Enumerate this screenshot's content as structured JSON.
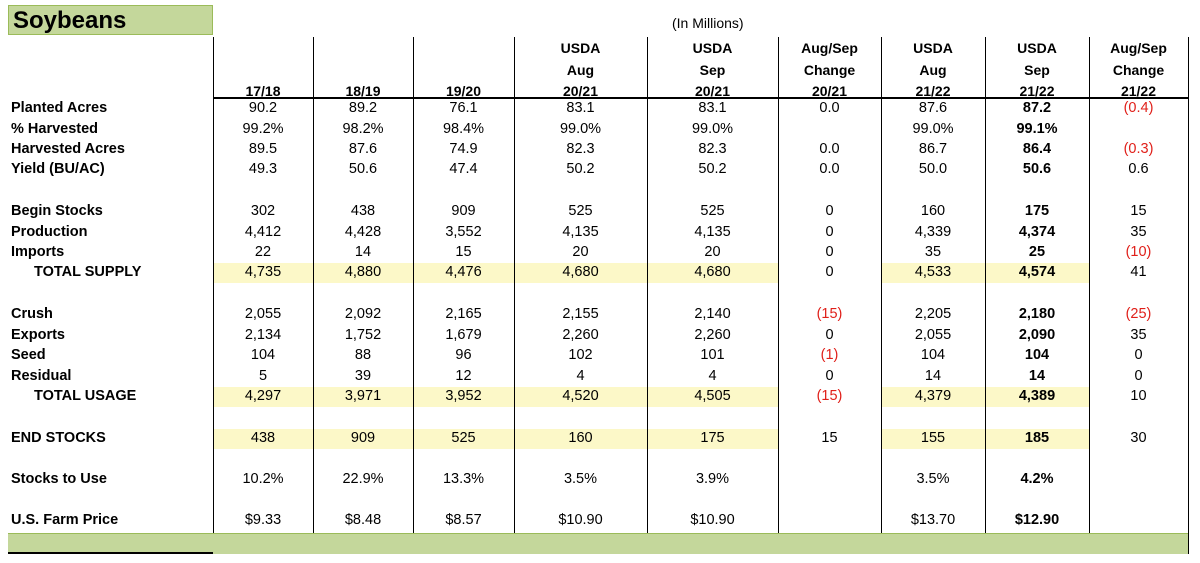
{
  "title": "Soybeans",
  "units_note": "(In Millions)",
  "columns": [
    [
      "",
      "",
      "17/18"
    ],
    [
      "",
      "",
      "18/19"
    ],
    [
      "",
      "",
      "19/20"
    ],
    [
      "USDA",
      "Aug",
      "20/21"
    ],
    [
      "USDA",
      "Sep",
      "20/21"
    ],
    [
      "Aug/Sep",
      "Change",
      "20/21"
    ],
    [
      "USDA",
      "Aug",
      "21/22"
    ],
    [
      "USDA",
      "Sep",
      "21/22"
    ],
    [
      "Aug/Sep",
      "Change",
      "21/22"
    ]
  ],
  "rows": [
    {
      "label": "Planted Acres",
      "values": [
        "90.2",
        "89.2",
        "76.1",
        "83.1",
        "83.1",
        "0.0",
        "87.6",
        "87.2",
        "(0.4)"
      ]
    },
    {
      "label": "% Harvested",
      "values": [
        "99.2%",
        "98.2%",
        "98.4%",
        "99.0%",
        "99.0%",
        "",
        "99.0%",
        "99.1%",
        ""
      ]
    },
    {
      "label": "Harvested Acres",
      "values": [
        "89.5",
        "87.6",
        "74.9",
        "82.3",
        "82.3",
        "0.0",
        "86.7",
        "86.4",
        "(0.3)"
      ]
    },
    {
      "label": "Yield (BU/AC)",
      "values": [
        "49.3",
        "50.6",
        "47.4",
        "50.2",
        "50.2",
        "0.0",
        "50.0",
        "50.6",
        "0.6"
      ]
    },
    {
      "label": "Begin Stocks",
      "values": [
        "302",
        "438",
        "909",
        "525",
        "525",
        "0",
        "160",
        "175",
        "15"
      ]
    },
    {
      "label": "Production",
      "values": [
        "4,412",
        "4,428",
        "3,552",
        "4,135",
        "4,135",
        "0",
        "4,339",
        "4,374",
        "35"
      ]
    },
    {
      "label": "Imports",
      "values": [
        "22",
        "14",
        "15",
        "20",
        "20",
        "0",
        "35",
        "25",
        "(10)"
      ]
    },
    {
      "label": "TOTAL SUPPLY",
      "values": [
        "4,735",
        "4,880",
        "4,476",
        "4,680",
        "4,680",
        "0",
        "4,533",
        "4,574",
        "41"
      ]
    },
    {
      "label": "Crush",
      "values": [
        "2,055",
        "2,092",
        "2,165",
        "2,155",
        "2,140",
        "(15)",
        "2,205",
        "2,180",
        "(25)"
      ]
    },
    {
      "label": "Exports",
      "values": [
        "2,134",
        "1,752",
        "1,679",
        "2,260",
        "2,260",
        "0",
        "2,055",
        "2,090",
        "35"
      ]
    },
    {
      "label": "Seed",
      "values": [
        "104",
        "88",
        "96",
        "102",
        "101",
        "(1)",
        "104",
        "104",
        "0"
      ]
    },
    {
      "label": "Residual",
      "values": [
        "5",
        "39",
        "12",
        "4",
        "4",
        "0",
        "14",
        "14",
        "0"
      ]
    },
    {
      "label": "TOTAL USAGE",
      "values": [
        "4,297",
        "3,971",
        "3,952",
        "4,520",
        "4,505",
        "(15)",
        "4,379",
        "4,389",
        "10"
      ]
    },
    {
      "label": "END STOCKS",
      "values": [
        "438",
        "909",
        "525",
        "160",
        "175",
        "15",
        "155",
        "185",
        "30"
      ]
    },
    {
      "label": "Stocks to Use",
      "values": [
        "10.2%",
        "22.9%",
        "13.3%",
        "3.5%",
        "3.9%",
        "",
        "3.5%",
        "4.2%",
        ""
      ]
    },
    {
      "label": "U.S. Farm Price",
      "values": [
        "$9.33",
        "$8.48",
        "$8.57",
        "$10.90",
        "$10.90",
        "",
        "$13.70",
        "$12.90",
        ""
      ]
    }
  ]
}
